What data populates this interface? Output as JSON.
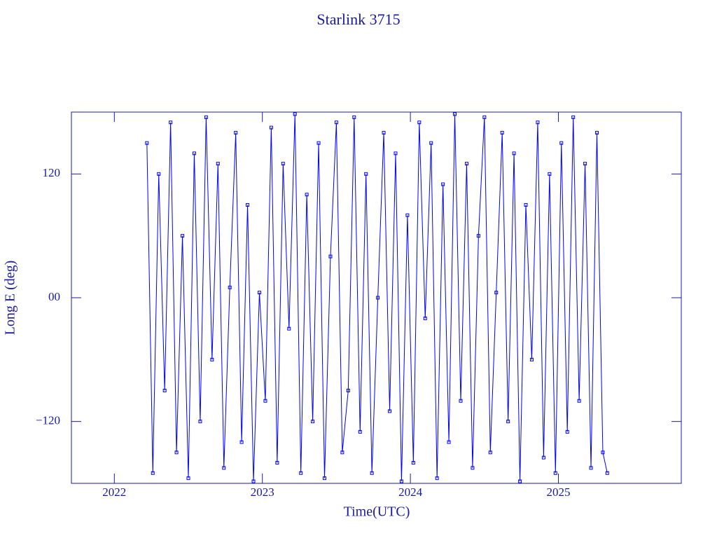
{
  "chart_data": {
    "type": "line",
    "title": "Starlink 3715",
    "x_label": "Time(UTC)",
    "y_label": "Long E (deg)",
    "xlim": [
      2021.71,
      2025.83
    ],
    "xticks": [
      2022,
      2023,
      2024,
      2025
    ],
    "ylim": [
      -180,
      180
    ],
    "yticks": [
      {
        "value": -120,
        "label": "−120"
      },
      {
        "value": 0,
        "label": "00"
      },
      120
    ],
    "x": [
      2022.22,
      2022.26,
      2022.3,
      2022.34,
      2022.38,
      2022.42,
      2022.46,
      2022.5,
      2022.54,
      2022.58,
      2022.62,
      2022.66,
      2022.7,
      2022.74,
      2022.78,
      2022.82,
      2022.86,
      2022.9,
      2022.94,
      2022.98,
      2023.02,
      2023.06,
      2023.1,
      2023.14,
      2023.18,
      2023.22,
      2023.26,
      2023.3,
      2023.34,
      2023.38,
      2023.42,
      2023.46,
      2023.5,
      2023.54,
      2023.58,
      2023.62,
      2023.66,
      2023.7,
      2023.74,
      2023.78,
      2023.82,
      2023.86,
      2023.9,
      2023.94,
      2023.98,
      2024.02,
      2024.06,
      2024.1,
      2024.14,
      2024.18,
      2024.22,
      2024.26,
      2024.3,
      2024.34,
      2024.38,
      2024.42,
      2024.46,
      2024.5,
      2024.54,
      2024.58,
      2024.62,
      2024.66,
      2024.7,
      2024.74,
      2024.78,
      2024.82,
      2024.86,
      2024.9,
      2024.94,
      2024.98,
      2025.02,
      2025.06,
      2025.1,
      2025.14,
      2025.18,
      2025.22,
      2025.26,
      2025.3,
      2025.33
    ],
    "series": [
      {
        "color": "#0000ff",
        "values": [
          150,
          -170,
          120,
          -90,
          170,
          -150,
          60,
          -175,
          140,
          -120,
          175,
          -60,
          130,
          -165,
          10,
          160,
          -140,
          90,
          -178,
          5,
          -100,
          165,
          -160,
          130,
          -30,
          178,
          -170,
          100,
          -120,
          150,
          -175,
          40,
          170,
          -150,
          -90,
          175,
          -130,
          120,
          -170,
          0,
          160,
          -110,
          140,
          -178,
          80,
          -160,
          170,
          -20,
          150,
          -175,
          110,
          -140,
          178,
          -100,
          130,
          -165,
          60,
          175,
          -150,
          5,
          160,
          -120,
          140,
          -178,
          90,
          -60,
          170,
          -155,
          120,
          -170,
          150,
          -130,
          175,
          -100,
          130,
          -165,
          160,
          -150,
          -170
        ]
      }
    ]
  }
}
